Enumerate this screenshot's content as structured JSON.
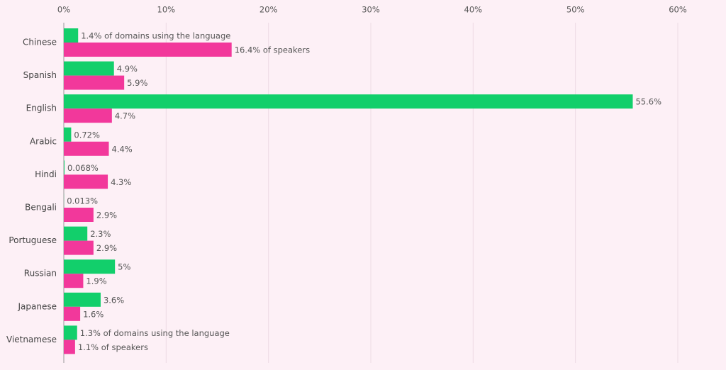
{
  "chart_data": {
    "type": "bar",
    "orientation": "horizontal",
    "categories": [
      "Chinese",
      "Spanish",
      "English",
      "Arabic",
      "Hindi",
      "Bengali",
      "Portuguese",
      "Russian",
      "Japanese",
      "Vietnamese"
    ],
    "series": [
      {
        "color": "#12cf6b",
        "values": [
          1.4,
          4.9,
          55.6,
          0.72,
          0.068,
          0.013,
          2.3,
          5,
          3.6,
          1.3
        ],
        "value_labels": [
          "1.4% of domains using the language",
          "4.9%",
          "55.6%",
          "0.72%",
          "0.068%",
          "0.013%",
          "2.3%",
          "5%",
          "3.6%",
          "1.3% of domains using the language"
        ]
      },
      {
        "color": "#f2389b",
        "values": [
          16.4,
          5.9,
          4.7,
          4.4,
          4.3,
          2.9,
          2.9,
          1.9,
          1.6,
          1.1
        ],
        "value_labels": [
          "16.4% of speakers",
          "5.9%",
          "4.7%",
          "4.4%",
          "4.3%",
          "2.9%",
          "2.9%",
          "1.9%",
          "1.6%",
          "1.1% of speakers"
        ]
      }
    ],
    "xlim": [
      0,
      60
    ],
    "xticks": [
      {
        "value": 0,
        "label": "0%"
      },
      {
        "value": 10,
        "label": "10%"
      },
      {
        "value": 20,
        "label": "20%"
      },
      {
        "value": 30,
        "label": "30%"
      },
      {
        "value": 40,
        "label": "40%"
      },
      {
        "value": 50,
        "label": "50%"
      },
      {
        "value": 60,
        "label": "60%"
      }
    ],
    "grid": true
  }
}
